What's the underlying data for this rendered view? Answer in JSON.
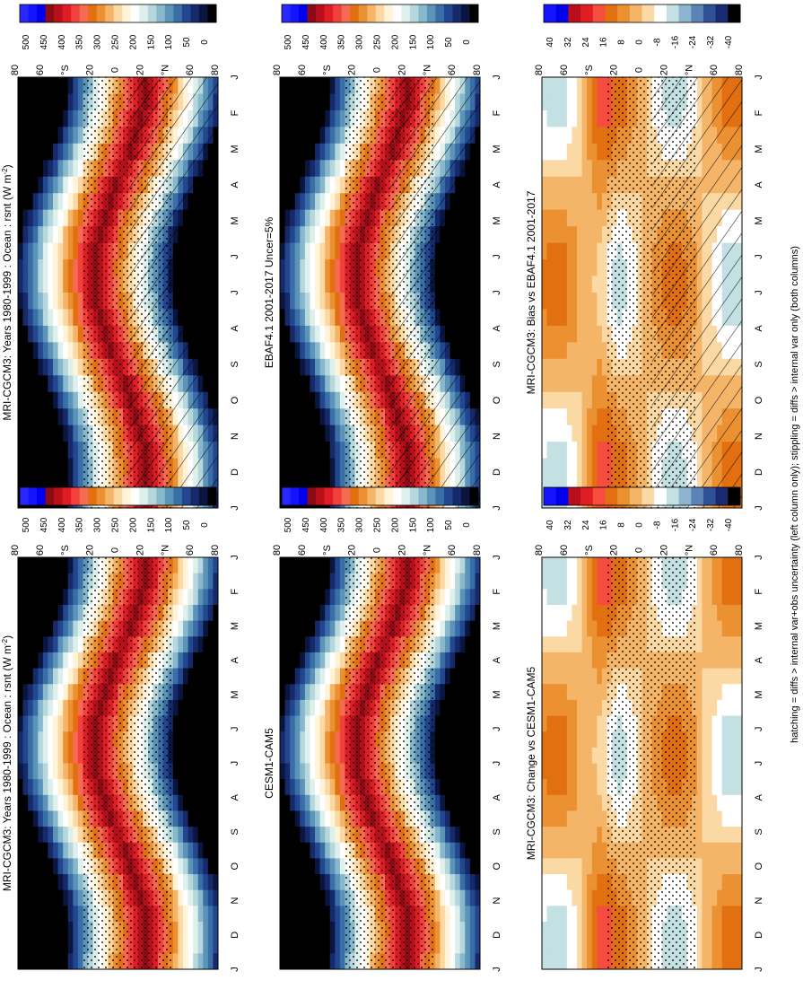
{
  "figure": {
    "footer": "hatching = diffs > internal var+obs uncertainty (left column only); stippling = diffs > internal var only (both columns)"
  },
  "colors": {
    "abs": [
      "#000000",
      "#0a1540",
      "#162a6b",
      "#22478f",
      "#3a6ea6",
      "#5b94b8",
      "#88b8cc",
      "#b6d8dc",
      "#def0ec",
      "#ffffff",
      "#fff3d8",
      "#fbd9a4",
      "#f4b569",
      "#ec9132",
      "#e27010",
      "#f56b52",
      "#f2403e",
      "#e01c25",
      "#b80f1a",
      "#8c0a14",
      "#0000ee",
      "#1414ff",
      "#2828ff"
    ],
    "diff": [
      "#000000",
      "#1a2a6e",
      "#2f4f96",
      "#5b83b5",
      "#8cb4cf",
      "#c3e0e3",
      "#ffffff",
      "#fbd9a4",
      "#f4b569",
      "#ec9132",
      "#e27010",
      "#f54e3e",
      "#e01c25",
      "#b80f1a",
      "#0000ee",
      "#1414ff"
    ]
  },
  "chart_data": [
    {
      "type": "heatmap",
      "title": "MRI-CGCM3: Years 1980-1999 : Ocean : rsnt (W m",
      "title_sup": "-2",
      "title_end": ")",
      "x": [
        "J",
        "F",
        "M",
        "A",
        "M",
        "J",
        "J",
        "A",
        "S",
        "O",
        "N",
        "D",
        "J"
      ],
      "y_ticks": [
        "80",
        "60",
        "°S",
        "20",
        "0",
        "20",
        "°N",
        "60",
        "80"
      ],
      "colorbar": [
        "500",
        "450",
        "400",
        "350",
        "300",
        "250",
        "200",
        "150",
        "100",
        "50",
        "0"
      ],
      "scale": "abs",
      "hatching": true,
      "stippling": true
    },
    {
      "type": "heatmap",
      "title": "EBAF4.1 2001-2017 Uncer=5%",
      "x": [
        "J",
        "F",
        "M",
        "A",
        "M",
        "J",
        "J",
        "A",
        "S",
        "O",
        "N",
        "D",
        "J"
      ],
      "y_ticks": [
        "80",
        "60",
        "°S",
        "20",
        "0",
        "20",
        "°N",
        "60",
        "80"
      ],
      "colorbar": [
        "500",
        "450",
        "400",
        "350",
        "300",
        "250",
        "200",
        "150",
        "100",
        "50",
        "0"
      ],
      "scale": "abs",
      "hatching": true,
      "stippling": true
    },
    {
      "type": "heatmap",
      "title": "MRI-CGCM3: Bias vs EBAF4.1 2001-2017",
      "x": [
        "J",
        "F",
        "M",
        "A",
        "M",
        "J",
        "J",
        "A",
        "S",
        "O",
        "N",
        "D",
        "J"
      ],
      "y_ticks": [
        "80",
        "60",
        "°S",
        "20",
        "0",
        "20",
        "°N",
        "60",
        "80"
      ],
      "colorbar": [
        "40",
        "32",
        "24",
        "16",
        "8",
        "0",
        "-8",
        "-16",
        "-24",
        "-32",
        "-40"
      ],
      "scale": "diff",
      "hatching": true,
      "stippling": true
    },
    {
      "type": "heatmap",
      "title": "MRI-CGCM3: Years 1980-1999 : Ocean : rsnt (W m",
      "title_sup": "-2",
      "title_end": ")",
      "x": [
        "J",
        "F",
        "M",
        "A",
        "M",
        "J",
        "J",
        "A",
        "S",
        "O",
        "N",
        "D",
        "J"
      ],
      "y_ticks": [
        "80",
        "60",
        "°S",
        "20",
        "0",
        "20",
        "°N",
        "60",
        "80"
      ],
      "colorbar": [
        "500",
        "450",
        "400",
        "350",
        "300",
        "250",
        "200",
        "150",
        "100",
        "50",
        "0"
      ],
      "scale": "abs",
      "hatching": false,
      "stippling": true
    },
    {
      "type": "heatmap",
      "title": "CESM1-CAM5",
      "x": [
        "J",
        "F",
        "M",
        "A",
        "M",
        "J",
        "J",
        "A",
        "S",
        "O",
        "N",
        "D",
        "J"
      ],
      "y_ticks": [
        "80",
        "60",
        "°S",
        "20",
        "0",
        "20",
        "°N",
        "60",
        "80"
      ],
      "colorbar": [
        "500",
        "450",
        "400",
        "350",
        "300",
        "250",
        "200",
        "150",
        "100",
        "50",
        "0"
      ],
      "scale": "abs",
      "hatching": false,
      "stippling": true
    },
    {
      "type": "heatmap",
      "title": "MRI-CGCM3: Change vs CESM1-CAM5",
      "x": [
        "J",
        "F",
        "M",
        "A",
        "M",
        "J",
        "J",
        "A",
        "S",
        "O",
        "N",
        "D",
        "J"
      ],
      "y_ticks": [
        "80",
        "60",
        "°S",
        "20",
        "0",
        "20",
        "°N",
        "60",
        "80"
      ],
      "colorbar": [
        "40",
        "32",
        "24",
        "16",
        "8",
        "0",
        "-8",
        "-16",
        "-24",
        "-32",
        "-40"
      ],
      "scale": "diff",
      "hatching": false,
      "stippling": true
    }
  ]
}
